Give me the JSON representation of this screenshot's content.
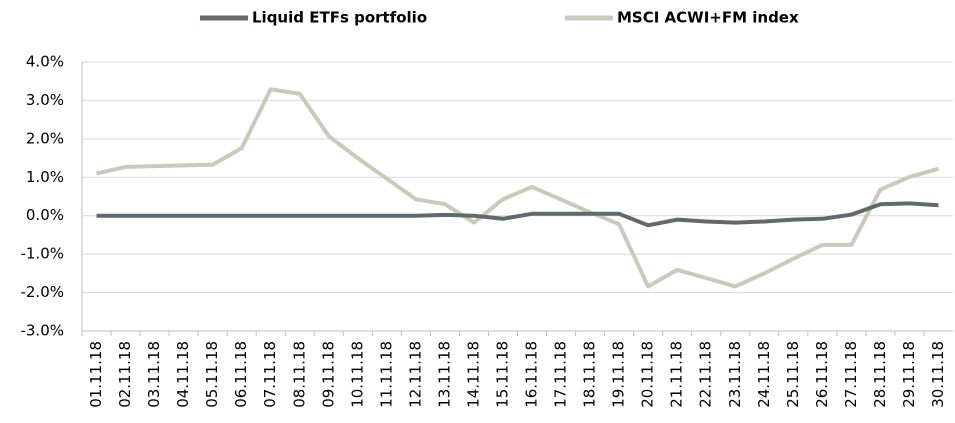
{
  "chart_data": {
    "type": "line",
    "categories": [
      "01.11.18",
      "02.11.18",
      "03.11.18",
      "04.11.18",
      "05.11.18",
      "06.11.18",
      "07.11.18",
      "08.11.18",
      "09.11.18",
      "10.11.18",
      "11.11.18",
      "12.11.18",
      "13.11.18",
      "14.11.18",
      "15.11.18",
      "16.11.18",
      "17.11.18",
      "18.11.18",
      "19.11.18",
      "20.11.18",
      "21.11.18",
      "22.11.18",
      "23.11.18",
      "24.11.18",
      "25.11.18",
      "26.11.18",
      "27.11.18",
      "28.11.18",
      "29.11.18",
      "30.11.18"
    ],
    "series": [
      {
        "name": "Liquid ETFs portfolio",
        "color": "#5f6b6b",
        "values": [
          0,
          0,
          0,
          0,
          0,
          0,
          0,
          0,
          0,
          0,
          0,
          0,
          0.02,
          0.0,
          -0.08,
          0.05,
          0.05,
          0.05,
          0.05,
          -0.25,
          -0.1,
          -0.15,
          -0.18,
          -0.15,
          -0.1,
          -0.08,
          0.03,
          0.3,
          0.32,
          0.27
        ]
      },
      {
        "name": "MSCI ACWI+FM index",
        "color": "#c8cbb8",
        "values": [
          1.1,
          1.27,
          1.29,
          1.31,
          1.33,
          1.76,
          3.29,
          3.17,
          2.07,
          1.5,
          0.96,
          0.43,
          0.3,
          -0.18,
          0.43,
          0.75,
          0.42,
          0.09,
          -0.22,
          -1.84,
          -1.41,
          -1.62,
          -1.84,
          -1.5,
          -1.12,
          -0.76,
          -0.76,
          0.68,
          1.01,
          1.22
        ]
      }
    ],
    "ylim": [
      -3,
      4
    ],
    "yticks": [
      {
        "value": -3,
        "label": "-3.0%"
      },
      {
        "value": -2,
        "label": "-2.0%"
      },
      {
        "value": -1,
        "label": "-1.0%"
      },
      {
        "value": 0,
        "label": "0.0%"
      },
      {
        "value": 1,
        "label": "1.0%"
      },
      {
        "value": 2,
        "label": "2.0%"
      },
      {
        "value": 3,
        "label": "3.0%"
      },
      {
        "value": 4,
        "label": "4.0%"
      }
    ],
    "grid": true,
    "legend": "top"
  }
}
